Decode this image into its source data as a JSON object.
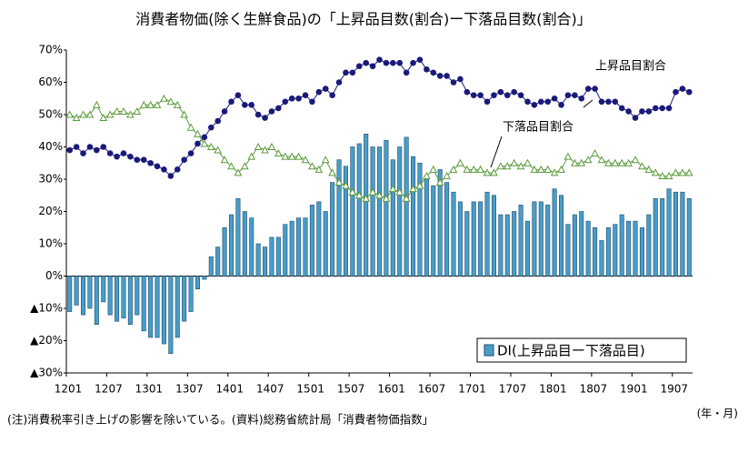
{
  "chart_data": {
    "type": "bar",
    "title": "消費者物価(除く生鮮食品)の「上昇品目数(割合)ー下落品目数(割合)」",
    "note": "(注)消費税率引き上げの影響を除いている。(資料)総務省統計局「消費者物価指数」",
    "x_label": "(年・月)",
    "categories": [
      "1201",
      null,
      null,
      null,
      null,
      null,
      "1207",
      null,
      null,
      null,
      null,
      null,
      "1301",
      null,
      null,
      null,
      null,
      null,
      "1307",
      null,
      null,
      null,
      null,
      null,
      "1401",
      null,
      null,
      null,
      null,
      null,
      "1407",
      null,
      null,
      null,
      null,
      null,
      "1501",
      null,
      null,
      null,
      null,
      null,
      "1507",
      null,
      null,
      null,
      null,
      null,
      "1601",
      null,
      null,
      null,
      null,
      null,
      "1607",
      null,
      null,
      null,
      null,
      null,
      "1701",
      null,
      null,
      null,
      null,
      null,
      "1707",
      null,
      null,
      null,
      null,
      null,
      "1801",
      null,
      null,
      null,
      null,
      null,
      "1807",
      null,
      null,
      null,
      null,
      null,
      "1901",
      null,
      null,
      null,
      null,
      null,
      "1907",
      null,
      null
    ],
    "series": [
      {
        "name": "DI(上昇品目ー下落品目)",
        "type": "bar",
        "color": "#4a9cc7",
        "values": [
          -11,
          -9,
          -12,
          -10,
          -15,
          -8,
          -12,
          -14,
          -13,
          -15,
          -12,
          -17,
          -19,
          -19,
          -21,
          -24,
          -19,
          -14,
          -11,
          -4,
          -1,
          6,
          9,
          15,
          19,
          24,
          20,
          18,
          10,
          9,
          12,
          12,
          16,
          17,
          18,
          18,
          22,
          23,
          20,
          29,
          36,
          34,
          40,
          41,
          44,
          40,
          40,
          42,
          36,
          40,
          43,
          37,
          35,
          31,
          28,
          33,
          29,
          26,
          23,
          20,
          23,
          23,
          26,
          25,
          19,
          19,
          20,
          22,
          17,
          23,
          23,
          22,
          27,
          25,
          16,
          19,
          20,
          17,
          15,
          11,
          15,
          16,
          19,
          17,
          17,
          15,
          19,
          24,
          24,
          27,
          26,
          26,
          24
        ]
      },
      {
        "name": "上昇品目割合",
        "type": "line",
        "marker": "circle",
        "color": "#1a1a7a",
        "values": [
          39,
          40,
          38,
          40,
          39,
          40,
          38,
          37,
          38,
          37,
          36,
          36,
          35,
          34,
          33,
          31,
          33,
          36,
          38,
          41,
          43,
          46,
          48,
          51,
          54,
          56,
          53,
          53,
          50,
          49,
          51,
          52,
          54,
          55,
          55,
          56,
          54,
          57,
          58,
          56,
          60,
          63,
          63,
          65,
          66,
          65,
          67,
          66,
          66,
          66,
          63,
          66,
          67,
          64,
          63,
          62,
          62,
          60,
          61,
          57,
          56,
          56,
          54,
          56,
          57,
          56,
          57,
          56,
          54,
          53,
          54,
          54,
          55,
          53,
          56,
          56,
          55,
          58,
          58,
          54,
          54,
          54,
          52,
          51,
          49,
          51,
          51,
          52,
          52,
          52,
          57,
          58,
          57
        ]
      },
      {
        "name": "下落品目割合",
        "type": "line",
        "marker": "triangle",
        "color": "#5a9a3a",
        "values": [
          50,
          49,
          50,
          50,
          53,
          49,
          50,
          51,
          51,
          50,
          51,
          53,
          53,
          53,
          55,
          54,
          53,
          50,
          46,
          44,
          41,
          40,
          39,
          36,
          34,
          32,
          34,
          37,
          40,
          39,
          40,
          38,
          37,
          37,
          37,
          36,
          34,
          33,
          36,
          32,
          29,
          28,
          26,
          25,
          24,
          26,
          25,
          24,
          27,
          26,
          24,
          27,
          28,
          31,
          33,
          29,
          31,
          33,
          35,
          33,
          33,
          33,
          32,
          32,
          34,
          34,
          35,
          34,
          35,
          33,
          33,
          33,
          32,
          33,
          37,
          35,
          35,
          36,
          38,
          36,
          35,
          35,
          35,
          35,
          36,
          34,
          33,
          32,
          31,
          31,
          32,
          32,
          32
        ]
      }
    ],
    "ylim": [
      -30,
      70
    ],
    "yticks": [
      {
        "value": 70,
        "label": "70%"
      },
      {
        "value": 60,
        "label": "60%"
      },
      {
        "value": 50,
        "label": "50%"
      },
      {
        "value": 40,
        "label": "40%"
      },
      {
        "value": 30,
        "label": "30%"
      },
      {
        "value": 20,
        "label": "20%"
      },
      {
        "value": 10,
        "label": "10%"
      },
      {
        "value": 0,
        "label": "0%"
      },
      {
        "value": -10,
        "label": "▲10%"
      },
      {
        "value": -20,
        "label": "▲20%"
      },
      {
        "value": -30,
        "label": "▲30%"
      }
    ],
    "grid": false
  }
}
